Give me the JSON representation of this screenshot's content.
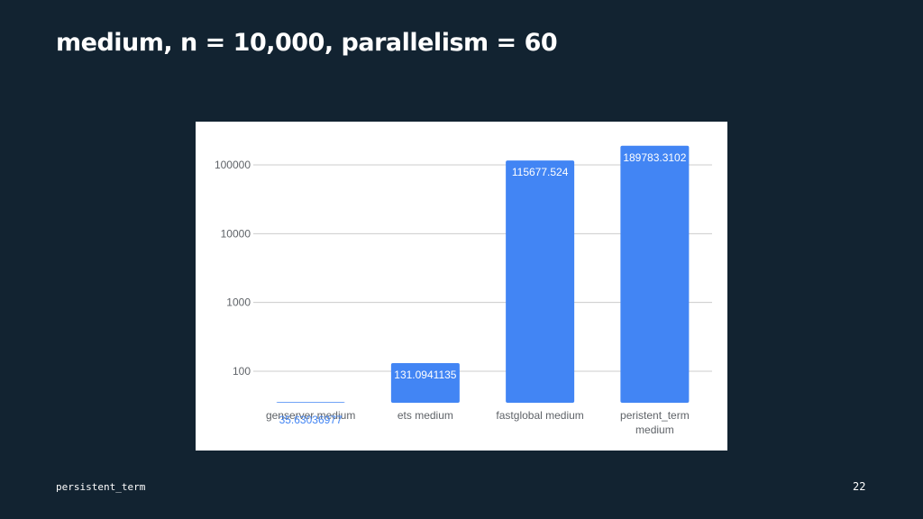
{
  "slide": {
    "title": "medium, n = 10,000, parallelism = 60",
    "footer": "persistent_term",
    "page_number": "22"
  },
  "chart_data": {
    "type": "bar",
    "scale": "log",
    "categories": [
      "genserver medium",
      "ets medium",
      "fastglobal medium",
      "peristent_term medium"
    ],
    "values": [
      35.63036977,
      131.0941135,
      115677.524,
      189783.3102
    ],
    "value_labels": [
      "35.63036977",
      "131.0941135",
      "115677.524",
      "189783.3102"
    ],
    "yticks": [
      100,
      1000,
      10000,
      100000
    ],
    "ytick_labels": [
      "100",
      "1000",
      "10000",
      "100000"
    ],
    "ylim": [
      40,
      240000
    ],
    "grid": true,
    "title": "",
    "xlabel": "",
    "ylabel": "",
    "colors": {
      "bar": "#4285f4",
      "bar_label": "#ffffff",
      "outside_label": "#4285f4",
      "grid": "#cccccc",
      "axis_text": "#5f6368"
    }
  }
}
